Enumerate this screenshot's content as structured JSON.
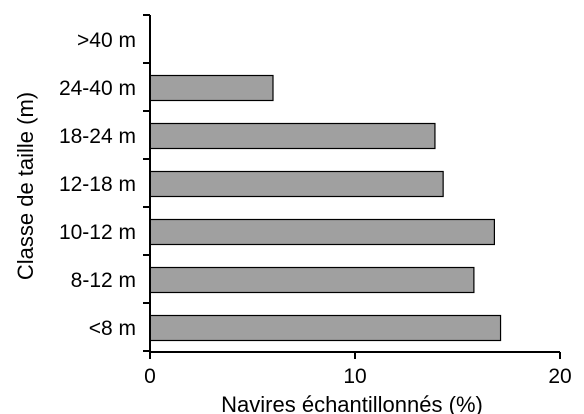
{
  "chart_data": {
    "type": "bar",
    "orientation": "horizontal",
    "title": "",
    "xlabel": "Navires échantillonnés (%)",
    "ylabel": "Classe de taille (m)",
    "categories": [
      ">40 m",
      "24-40 m",
      "18-24 m",
      "12-18 m",
      "10-12 m",
      "8-12 m",
      "<8 m"
    ],
    "values": [
      0,
      6,
      13.9,
      14.3,
      16.8,
      15.8,
      17.1
    ],
    "xlim": [
      0,
      20
    ],
    "xticks": [
      "0",
      "10",
      "20"
    ],
    "grid": false,
    "legend": "none",
    "colors": {
      "bar_fill": "#a0a0a0",
      "bar_stroke": "#000000"
    }
  }
}
